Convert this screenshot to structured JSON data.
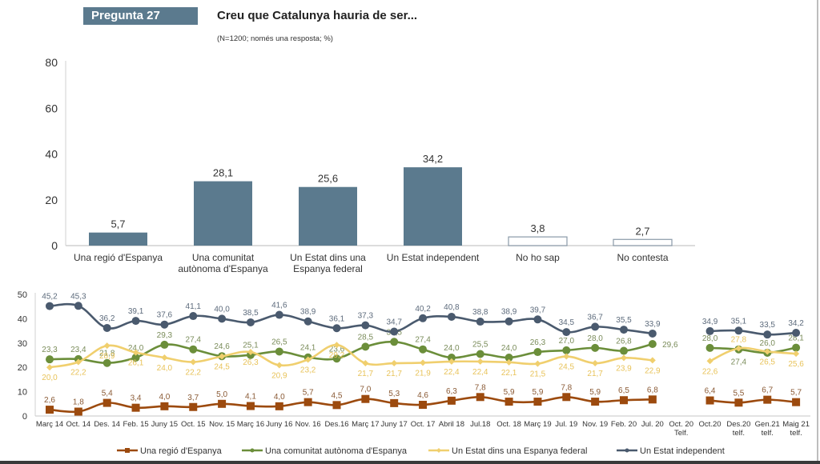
{
  "header": {
    "question_badge": "Pregunta 27",
    "title": "Creu que Catalunya hauria de ser...",
    "subtitle": "(N=1200; només una resposta; %)"
  },
  "chart_data": [
    {
      "type": "bar",
      "title": "Creu que Catalunya hauria de ser...",
      "categories": [
        [
          "Una regió d'Espanya"
        ],
        [
          "Una comunitat",
          "autònoma d'Espanya"
        ],
        [
          "Un Estat dins una",
          "Espanya federal"
        ],
        [
          "Un Estat independent"
        ],
        [
          "No ho sap"
        ],
        [
          "No contesta"
        ]
      ],
      "values": [
        5.7,
        28.1,
        25.6,
        34.2,
        3.8,
        2.7
      ],
      "value_labels": [
        "5,7",
        "28,1",
        "25,6",
        "34,2",
        "3,8",
        "2,7"
      ],
      "filled": [
        true,
        true,
        true,
        true,
        false,
        false
      ],
      "ylim": [
        0,
        80
      ],
      "yticks": [
        0,
        20,
        40,
        60,
        80
      ],
      "xlabel": "",
      "ylabel": "",
      "grid": false,
      "color": "#5b7a8e"
    },
    {
      "type": "line",
      "categories": [
        [
          "Març 14"
        ],
        [
          "Oct. 14"
        ],
        [
          "Des. 14"
        ],
        [
          "Feb. 15"
        ],
        [
          "Juny 15"
        ],
        [
          "Oct. 15"
        ],
        [
          "Nov. 15"
        ],
        [
          "Març 16"
        ],
        [
          "Juny 16"
        ],
        [
          "Nov. 16"
        ],
        [
          "Des.16"
        ],
        [
          "Març 17"
        ],
        [
          "Juny 17"
        ],
        [
          "Oct. 17"
        ],
        [
          "Abril 18"
        ],
        [
          "Jul.18"
        ],
        [
          "Oct. 18"
        ],
        [
          "Març 19"
        ],
        [
          "Jul. 19"
        ],
        [
          "Nov. 19"
        ],
        [
          "Feb. 20"
        ],
        [
          "Jul. 20"
        ],
        [
          "Oct. 20",
          "Telf."
        ],
        [
          "Oct.20"
        ],
        [
          "Des.20",
          "telf."
        ],
        [
          "Gen.21",
          "telf."
        ],
        [
          "Maig 21",
          "telf."
        ]
      ],
      "ylim": [
        0,
        50
      ],
      "yticks": [
        0,
        10,
        20,
        30,
        40,
        50
      ],
      "grid": false,
      "legend_position": "bottom",
      "series": [
        {
          "name": "Una regió d'Espanya",
          "color": "#9c4a0e",
          "marker": "square",
          "label_pos": "above",
          "values": [
            2.6,
            1.8,
            5.4,
            3.4,
            4.0,
            3.7,
            5.0,
            4.1,
            4.0,
            5.7,
            4.5,
            7.0,
            5.3,
            4.6,
            6.3,
            7.8,
            5.9,
            5.9,
            7.8,
            5.9,
            6.5,
            6.8,
            null,
            6.4,
            5.5,
            6.7,
            5.7
          ],
          "labels": [
            "2,6",
            "1,8",
            "5,4",
            "3,4",
            "4,0",
            "3,7",
            "5,0",
            "4,1",
            "4,0",
            "5,7",
            "4,5",
            "7,0",
            "5,3",
            "4,6",
            "6,3",
            "7,8",
            "5,9",
            "5,9",
            "7,8",
            "5,9",
            "6,5",
            "6,8",
            "",
            "6,4",
            "5,5",
            "6,7",
            "5,7"
          ]
        },
        {
          "name": "Una comunitat autònoma d'Espanya",
          "color": "#6b8e3a",
          "marker": "circle",
          "label_pos": "above",
          "values": [
            23.3,
            23.4,
            21.8,
            24.0,
            29.3,
            27.4,
            24.6,
            25.1,
            26.5,
            24.1,
            23.6,
            28.5,
            30.5,
            27.4,
            24.0,
            25.5,
            24.0,
            26.3,
            27.0,
            28.0,
            26.8,
            29.6,
            null,
            28.0,
            27.4,
            26.0,
            28.1
          ],
          "labels": [
            "23,3",
            "23,4",
            "21,8",
            "24,0",
            "29,3",
            "27,4",
            "24,6",
            "25,1",
            "26,5",
            "24,1",
            "23,6",
            "28,5",
            "30,5",
            "27,4",
            "24,0",
            "25,5",
            "24,0",
            "26,3",
            "27,0",
            "28,0",
            "26,8",
            "29,6",
            "",
            "28,0",
            "27,4",
            "26,0",
            "28,1"
          ]
        },
        {
          "name": "Un Estat dins una Espanya federal",
          "color": "#f0cf6e",
          "marker": "diamond",
          "label_pos": "below",
          "values": [
            20.0,
            22.2,
            28.9,
            26.1,
            24.0,
            22.2,
            24.5,
            26.3,
            20.9,
            23.2,
            29.2,
            21.7,
            21.7,
            21.9,
            22.4,
            22.4,
            22.1,
            21.5,
            24.5,
            21.7,
            23.9,
            22.9,
            null,
            22.6,
            27.8,
            26.5,
            25.6
          ],
          "labels": [
            "20,0",
            "22,2",
            "28,9",
            "26,1",
            "24,0",
            "22,2",
            "24,5",
            "26,3",
            "20,9",
            "23,2",
            "29,2",
            "21,7",
            "21,7",
            "21,9",
            "22,4",
            "22,4",
            "22,1",
            "21,5",
            "24,5",
            "21,7",
            "23,9",
            "22,9",
            "",
            "22,6",
            "27,8",
            "26,5",
            "25,6"
          ]
        },
        {
          "name": "Un Estat independent",
          "color": "#4a5a6e",
          "marker": "circle",
          "label_pos": "above",
          "values": [
            45.2,
            45.3,
            36.2,
            39.1,
            37.6,
            41.1,
            40.0,
            38.5,
            41.6,
            38.9,
            36.1,
            37.3,
            34.7,
            40.2,
            40.8,
            38.8,
            38.9,
            39.7,
            34.5,
            36.7,
            35.5,
            33.9,
            null,
            34.9,
            35.1,
            33.5,
            34.2
          ],
          "labels": [
            "45,2",
            "45,3",
            "36,2",
            "39,1",
            "37,6",
            "41,1",
            "40,0",
            "38,5",
            "41,6",
            "38,9",
            "36,1",
            "37,3",
            "34,7",
            "40,2",
            "40,8",
            "38,8",
            "38,9",
            "39,7",
            "34,5",
            "36,7",
            "35,5",
            "33,9",
            "",
            "34,9",
            "35,1",
            "33,5",
            "34,2"
          ]
        }
      ]
    }
  ]
}
